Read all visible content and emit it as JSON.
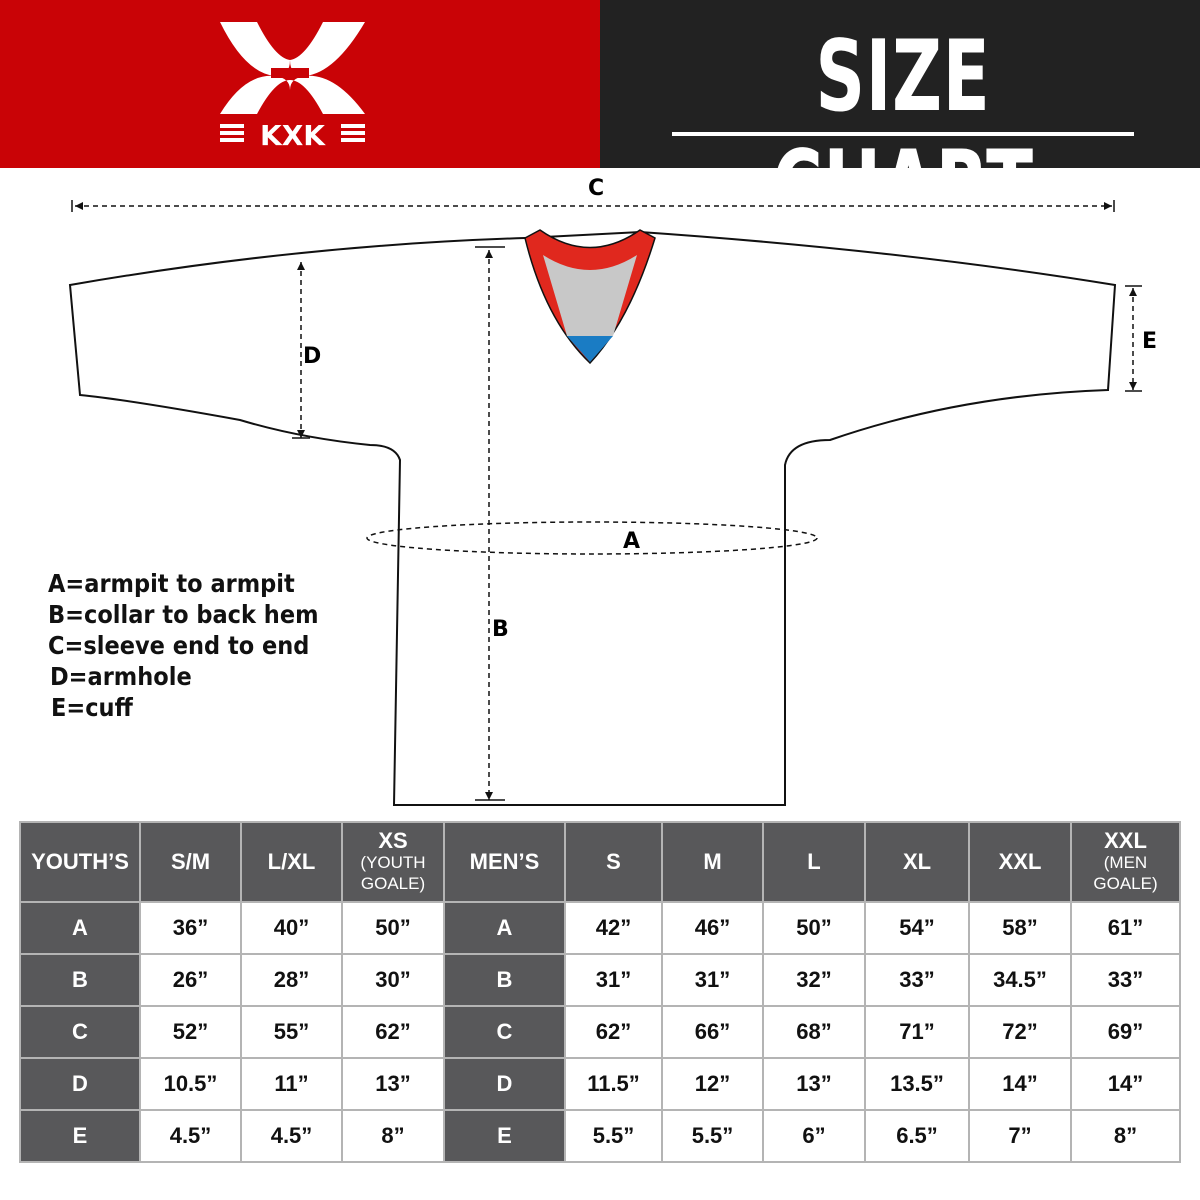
{
  "header": {
    "logo_text": "KXK",
    "title": "SIZE CHART",
    "brand_color": "#c90306"
  },
  "diagram": {
    "labels": {
      "a": "A",
      "b": "B",
      "c": "C",
      "d": "D",
      "e": "E"
    }
  },
  "legend": [
    "A=armpit to armpit",
    "B=collar to back hem",
    "C=sleeve end to end",
    "D=armhole",
    "E=cuff"
  ],
  "table": {
    "headers": [
      {
        "main": "YOUTH’S"
      },
      {
        "main": "S/M"
      },
      {
        "main": "L/XL"
      },
      {
        "main": "XS",
        "sub1": "(YOUTH",
        "sub2": "GOALE)"
      },
      {
        "main": "MEN’S"
      },
      {
        "main": "S"
      },
      {
        "main": "M"
      },
      {
        "main": "L"
      },
      {
        "main": "XL"
      },
      {
        "main": "XXL"
      },
      {
        "main": "XXL",
        "sub1": "(MEN",
        "sub2": "GOALE)"
      }
    ],
    "rows": [
      [
        "A",
        "36”",
        "40”",
        "50”",
        "A",
        "42”",
        "46”",
        "50”",
        "54”",
        "58”",
        "61”"
      ],
      [
        "B",
        "26”",
        "28”",
        "30”",
        "B",
        "31”",
        "31”",
        "32”",
        "33”",
        "34.5”",
        "33”"
      ],
      [
        "C",
        "52”",
        "55”",
        "62”",
        "C",
        "62”",
        "66”",
        "68”",
        "71”",
        "72”",
        "69”"
      ],
      [
        "D",
        "10.5”",
        "11”",
        "13”",
        "D",
        "11.5”",
        "12”",
        "13”",
        "13.5”",
        "14”",
        "14”"
      ],
      [
        "E",
        "4.5”",
        "4.5”",
        "8”",
        "E",
        "5.5”",
        "5.5”",
        "6”",
        "6.5”",
        "7”",
        "8”"
      ]
    ]
  }
}
